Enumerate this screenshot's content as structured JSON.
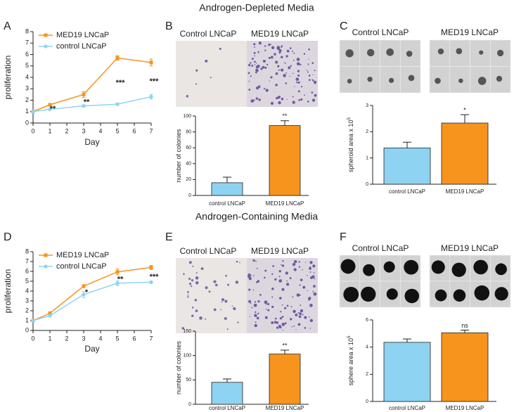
{
  "sections": [
    {
      "title": "Androgen-Depleted Media"
    },
    {
      "title": "Androgen-Containing Media"
    }
  ],
  "chart_data": [
    {
      "type": "line",
      "panel": "A",
      "xlabel": "Day",
      "ylabel": "proliferation",
      "x": [
        0,
        1,
        3,
        5,
        7
      ],
      "xlim": [
        0,
        7
      ],
      "xticks": [
        0,
        1,
        2,
        3,
        4,
        5,
        6,
        7
      ],
      "ylim": [
        0,
        8
      ],
      "yticks": [
        0,
        1,
        2,
        3,
        4,
        5,
        6,
        7,
        8
      ],
      "series": [
        {
          "name": "MED19 LNCaP",
          "color": "#f7941d",
          "marker": "square",
          "values": [
            1,
            1.6,
            2.5,
            5.7,
            5.3
          ],
          "errors": [
            0.05,
            0.1,
            0.25,
            0.2,
            0.3
          ]
        },
        {
          "name": "control LNCaP",
          "color": "#8fd3f2",
          "marker": "circle",
          "values": [
            1,
            1.2,
            1.5,
            1.65,
            2.3
          ],
          "errors": [
            0.05,
            0.05,
            0.1,
            0.1,
            0.2
          ]
        }
      ],
      "annotations": [
        null,
        "**",
        "**",
        "***",
        "***"
      ]
    },
    {
      "type": "bar",
      "panel": "B",
      "image_labels": [
        "Control LNCaP",
        "MED19 LNCaP"
      ],
      "ylabel": "number of colonies",
      "categories": [
        "control LNCaP",
        "MED19 LNCaP"
      ],
      "values": [
        16,
        88
      ],
      "errors": [
        7,
        6
      ],
      "colors": [
        "#8fd3f2",
        "#f7941d"
      ],
      "ylim": [
        0,
        100
      ],
      "yticks": [
        0,
        20,
        40,
        60,
        80,
        100
      ],
      "annotations": [
        null,
        "**"
      ]
    },
    {
      "type": "bar",
      "panel": "C",
      "image_labels": [
        "Control LNCaP",
        "MED19 LNCaP"
      ],
      "ylabel": "spheroid area x 10",
      "ylabel_exponent": "5",
      "categories": [
        "control LNCaP",
        "MED19 LNCaP"
      ],
      "values": [
        1.38,
        2.33
      ],
      "errors": [
        0.22,
        0.32
      ],
      "colors": [
        "#8fd3f2",
        "#f7941d"
      ],
      "ylim": [
        0,
        3
      ],
      "yticks": [
        0,
        1,
        2,
        3
      ],
      "annotations": [
        null,
        "*"
      ]
    },
    {
      "type": "line",
      "panel": "D",
      "xlabel": "Day",
      "ylabel": "proliferation",
      "x": [
        0,
        1,
        3,
        5,
        7
      ],
      "xlim": [
        0,
        7
      ],
      "xticks": [
        0,
        1,
        2,
        3,
        4,
        5,
        6,
        7
      ],
      "ylim": [
        0,
        8
      ],
      "yticks": [
        0,
        1,
        2,
        3,
        4,
        5,
        6,
        7,
        8
      ],
      "series": [
        {
          "name": "MED19 LNCaP",
          "color": "#f7941d",
          "marker": "square",
          "values": [
            1,
            1.75,
            4.5,
            5.95,
            6.4
          ],
          "errors": [
            0.05,
            0.15,
            0.15,
            0.3,
            0.2
          ]
        },
        {
          "name": "control LNCaP",
          "color": "#8fd3f2",
          "marker": "circle",
          "values": [
            1,
            1.5,
            3.65,
            4.8,
            4.9
          ],
          "errors": [
            0.05,
            0.1,
            0.3,
            0.25,
            0.1
          ]
        }
      ],
      "annotations": [
        null,
        null,
        "*",
        "**",
        "***"
      ]
    },
    {
      "type": "bar",
      "panel": "E",
      "image_labels": [
        "Control LNCaP",
        "MED19 LNCaP"
      ],
      "ylabel": "number of colonies",
      "categories": [
        "control LNCaP",
        "MED19 LNCaP"
      ],
      "values": [
        45,
        103
      ],
      "errors": [
        7,
        8
      ],
      "colors": [
        "#8fd3f2",
        "#f7941d"
      ],
      "ylim": [
        0,
        150
      ],
      "yticks": [
        0,
        50,
        100,
        150
      ],
      "annotations": [
        null,
        "**"
      ]
    },
    {
      "type": "bar",
      "panel": "F",
      "image_labels": [
        "Control LNCaP",
        "MED19 LNCaP"
      ],
      "ylabel": "sphere area x 10",
      "ylabel_exponent": "5",
      "categories": [
        "control LNCaP",
        "MED19 LNCaP"
      ],
      "values": [
        4.35,
        5.05
      ],
      "errors": [
        0.25,
        0.2
      ],
      "colors": [
        "#8fd3f2",
        "#f7941d"
      ],
      "ylim": [
        0,
        6
      ],
      "yticks": [
        0,
        2,
        4,
        6
      ],
      "annotations": [
        null,
        "ns"
      ]
    }
  ]
}
